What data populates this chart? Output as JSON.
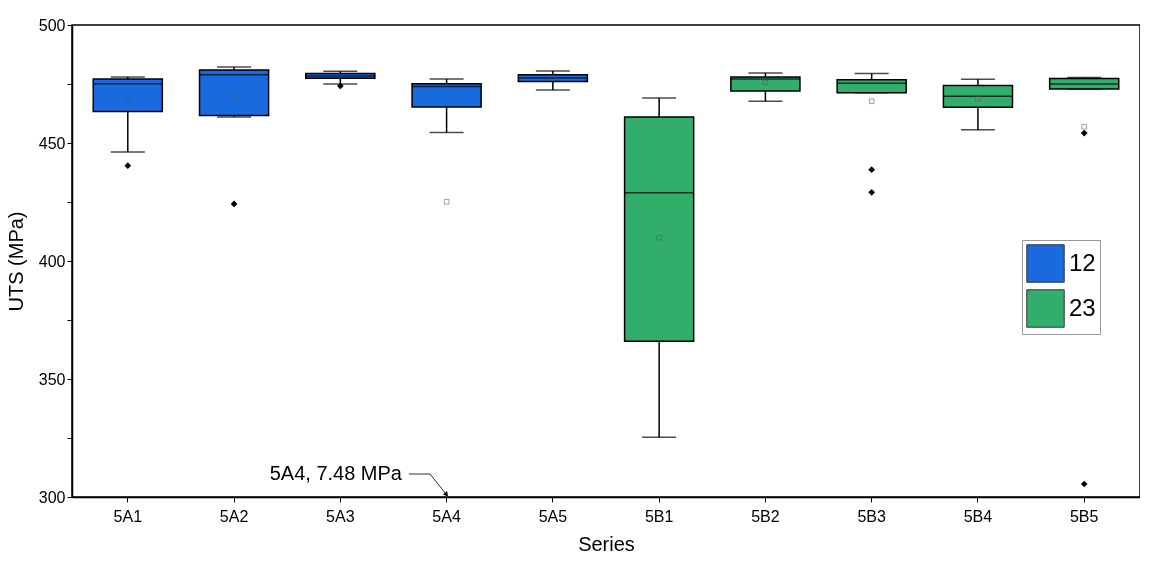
{
  "chart_data": {
    "type": "box",
    "xlabel": "Series",
    "ylabel": "UTS (MPa)",
    "categories": [
      "5A1",
      "5A2",
      "5A3",
      "5A4",
      "5A5",
      "5B1",
      "5B2",
      "5B3",
      "5B4",
      "5B5"
    ],
    "series": [
      {
        "name": "12",
        "color": "#1a6adf",
        "boxes": [
          {
            "low": 446.2,
            "q1": 463.3,
            "median": 475.1,
            "q3": 477.1,
            "high": 478.0,
            "mean": 468.4,
            "outliers": [
              440.4
            ]
          },
          {
            "low": 461.0,
            "q1": 461.6,
            "median": 478.9,
            "q3": 480.9,
            "high": 482.2,
            "mean": 469.4,
            "outliers": [
              424.2
            ]
          },
          {
            "low": 475.0,
            "q1": 477.4,
            "median": 478.4,
            "q3": 479.5,
            "high": 480.4,
            "outliers": [
              474.2
            ]
          },
          {
            "low": 454.4,
            "q1": 465.3,
            "median": 473.9,
            "q3": 475.1,
            "high": 477.1,
            "mean": 425.1
          },
          {
            "low": 472.5,
            "q1": 476.1,
            "median": 477.5,
            "q3": 478.9,
            "high": 480.5,
            "mean": 477.5
          },
          null,
          null,
          null,
          null,
          null
        ]
      },
      {
        "name": "23",
        "color": "#32ad6b",
        "boxes": [
          null,
          null,
          null,
          null,
          null,
          {
            "low": 325.3,
            "q1": 366.0,
            "median": 428.9,
            "q3": 461.0,
            "high": 469.1,
            "mean": 409.9
          },
          {
            "low": 467.7,
            "q1": 472.0,
            "median": 477.1,
            "q3": 478.0,
            "high": 479.7,
            "mean": 475.7
          },
          {
            "low": 471.3,
            "q1": 471.3,
            "median": 475.3,
            "q3": 476.8,
            "high": 479.4,
            "mean": 467.7,
            "outliers": [
              438.7,
              429.1
            ]
          },
          {
            "low": 455.6,
            "q1": 465.1,
            "median": 469.8,
            "q3": 474.4,
            "high": 477.0,
            "mean": 468.8
          },
          {
            "low": 472.9,
            "q1": 472.9,
            "median": 475.0,
            "q3": 477.3,
            "high": 477.8,
            "mean": 456.9,
            "outliers": [
              454.2,
              305.5
            ]
          }
        ]
      }
    ],
    "ylim": [
      300,
      500
    ],
    "yticks": [
      300,
      {
        "value": 325,
        "label": null
      },
      350,
      {
        "value": 375,
        "label": null
      },
      400,
      {
        "value": 425,
        "label": null
      },
      450,
      {
        "value": 475,
        "label": null
      },
      500
    ],
    "annotations": [
      "5A4, 7.48 MPa"
    ],
    "legend": "right"
  }
}
